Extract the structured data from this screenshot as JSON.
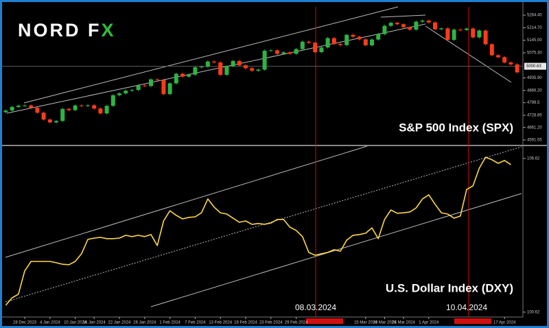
{
  "logo": [
    "NORD F",
    "X"
  ],
  "chart_data": [
    {
      "type": "candlestick",
      "title": "S&P 500 Index (SPX)",
      "up_color": "#2fb344",
      "down_color": "#ff3b1a",
      "ylim": [
        4561,
        5338
      ],
      "yticks": [
        {
          "value": 5284.4,
          "label": "5284.40"
        },
        {
          "value": 5214.7,
          "label": "5214.70"
        },
        {
          "value": 5145,
          "label": "5145.00"
        },
        {
          "value": 5075.3,
          "label": "5075.30"
        },
        {
          "value": 4935.9,
          "label": "4935.90"
        },
        {
          "value": 4866.2,
          "label": "4866.20"
        },
        4798.5,
        4728.85,
        {
          "value": 4661.2,
          "label": "4661.20"
        },
        4591.55
      ],
      "last_price": 5000.63,
      "open": [
        4746,
        4755,
        4775,
        4782,
        4783,
        4770,
        4743,
        4705,
        4689,
        4697,
        4764,
        4757,
        4783,
        4780,
        4784,
        4766,
        4739,
        4781,
        4840,
        4850,
        4865,
        4869,
        4894,
        4891,
        4928,
        4925,
        4846,
        4906,
        4959,
        4943,
        4954,
        4995,
        4998,
        5027,
        5022,
        4953,
        5001,
        5030,
        5006,
        4990,
        4976,
        4982,
        5087,
        5089,
        5070,
        5078,
        5070,
        5096,
        5137,
        5131,
        5079,
        5105,
        5157,
        5124,
        5118,
        5175,
        5165,
        5150,
        5117,
        5149,
        5179,
        5225,
        5242,
        5234,
        5218,
        5204,
        5248,
        5254,
        5244,
        5206,
        5211,
        5147,
        5204,
        5202,
        5210,
        5161,
        5199,
        5123,
        5062,
        5051,
        5022,
        5011
      ],
      "high": [
        4761,
        4781,
        4788,
        4789,
        4789,
        4776,
        4749,
        4711,
        4703,
        4770,
        4770,
        4789,
        4789,
        4790,
        4790,
        4772,
        4787,
        4846,
        4856,
        4871,
        4875,
        4900,
        4900,
        4934,
        4934,
        4931,
        4912,
        4965,
        4965,
        4960,
        5001,
        5004,
        5033,
        5033,
        5028,
        5007,
        5036,
        5036,
        5012,
        4996,
        4988,
        5093,
        5095,
        5095,
        5084,
        5084,
        5102,
        5143,
        5143,
        5137,
        5111,
        5163,
        5163,
        5130,
        5181,
        5181,
        5171,
        5156,
        5155,
        5185,
        5231,
        5248,
        5248,
        5240,
        5224,
        5254,
        5260,
        5260,
        5250,
        5217,
        5217,
        5210,
        5210,
        5216,
        5216,
        5205,
        5205,
        5129,
        5068,
        5057,
        5028,
        5017
      ],
      "low": [
        4740,
        4749,
        4769,
        4776,
        4764,
        4737,
        4699,
        4683,
        4683,
        4691,
        4751,
        4751,
        4774,
        4774,
        4760,
        4733,
        4733,
        4775,
        4834,
        4844,
        4859,
        4863,
        4885,
        4885,
        4919,
        4840,
        4840,
        4900,
        4937,
        4937,
        4948,
        4989,
        4992,
        5016,
        4947,
        4947,
        4995,
        5000,
        4984,
        4970,
        4970,
        4976,
        5081,
        5064,
        5064,
        5064,
        5064,
        5090,
        5125,
        5073,
        5073,
        5099,
        5118,
        5112,
        5112,
        5159,
        5144,
        5111,
        5111,
        5143,
        5173,
        5219,
        5228,
        5212,
        5198,
        5198,
        5242,
        5238,
        5200,
        5200,
        5141,
        5141,
        5196,
        5196,
        5155,
        5155,
        5117,
        5056,
        5045,
        5016,
        5005,
        4961
      ],
      "close": [
        4755,
        4775,
        4782,
        4783,
        4770,
        4743,
        4705,
        4689,
        4697,
        4764,
        4757,
        4783,
        4780,
        4784,
        4766,
        4739,
        4781,
        4840,
        4850,
        4865,
        4869,
        4894,
        4891,
        4928,
        4925,
        4846,
        4906,
        4959,
        4943,
        4954,
        4995,
        4998,
        5027,
        5022,
        4953,
        5001,
        5030,
        5006,
        4990,
        4976,
        4982,
        5087,
        5089,
        5070,
        5078,
        5070,
        5096,
        5137,
        5131,
        5079,
        5105,
        5157,
        5124,
        5118,
        5175,
        5165,
        5150,
        5117,
        5149,
        5179,
        5225,
        5242,
        5234,
        5218,
        5204,
        5248,
        5254,
        5244,
        5206,
        5211,
        5147,
        5204,
        5202,
        5210,
        5161,
        5199,
        5123,
        5062,
        5051,
        5022,
        5011,
        4967
      ]
    },
    {
      "type": "line",
      "title": "U.S. Dollar Index (DXY)",
      "categories": [
        null,
        null,
        null,
        "28 Dec 2023",
        null,
        null,
        null,
        "4 Jan 2024",
        null,
        null,
        null,
        "10 Jan 2024",
        null,
        null,
        "16 Jan 2024",
        null,
        null,
        null,
        "22 Jan 2024",
        null,
        null,
        null,
        "26 Jan 2024",
        null,
        null,
        null,
        "1 Feb 2024",
        null,
        null,
        null,
        "7 Feb 2024",
        null,
        null,
        null,
        "13 Feb 2024",
        null,
        null,
        null,
        "19 Feb 2024",
        null,
        null,
        null,
        "23 Feb 2024",
        null,
        null,
        null,
        "29 Feb 2024",
        null,
        null,
        null,
        null,
        null,
        null,
        null,
        null,
        null,
        null,
        "15 Mar 2024",
        null,
        null,
        "20 Mar 2024",
        null,
        null,
        "25 Mar 2024",
        null,
        null,
        null,
        "1 Apr 2024",
        null,
        null,
        null,
        null,
        null,
        null,
        null,
        null,
        null,
        null,
        null,
        "17 Apr 2024",
        null,
        null
      ],
      "color": "#ffd84a",
      "values": [
        100.89,
        101.18,
        101.32,
        102.23,
        102.6,
        102.6,
        102.6,
        102.6,
        102.55,
        102.49,
        102.47,
        102.6,
        102.9,
        103.46,
        103.51,
        103.54,
        103.49,
        103.49,
        103.51,
        103.62,
        103.57,
        103.62,
        103.57,
        103.65,
        103.22,
        104.18,
        104.58,
        104.4,
        104.26,
        104.32,
        104.34,
        104.5,
        105.04,
        104.72,
        104.5,
        104.45,
        104.29,
        104.13,
        104.18,
        104.05,
        104.08,
        104.05,
        104.1,
        104.24,
        104.24,
        103.94,
        103.81,
        103.57,
        102.95,
        102.84,
        102.9,
        102.95,
        103.06,
        103,
        103.43,
        103.62,
        103.65,
        103.7,
        103.91,
        103.49,
        104.24,
        104.61,
        104.48,
        104.5,
        104.53,
        104.69,
        105.04,
        105.2,
        104.83,
        104.5,
        104.45,
        104.29,
        104.37,
        105.41,
        105.55,
        106.24,
        106.67,
        106.57,
        106.43,
        106.54,
        106.38,
        null
      ],
      "ylim": [
        100.43,
        107.1
      ],
      "yticks": [
        106.62,
        100.62
      ],
      "annotations": [
        "08.03.2024",
        "10.04.2024"
      ]
    }
  ]
}
